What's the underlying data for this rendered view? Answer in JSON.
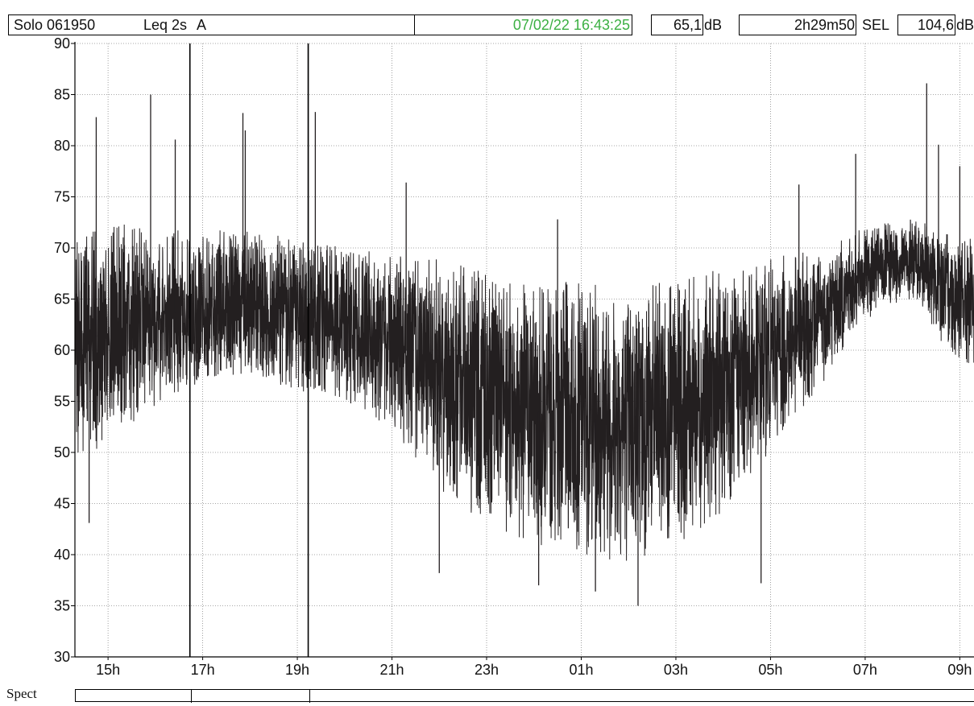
{
  "header": {
    "instrument": "Solo 061950",
    "measure": "Leq 2s",
    "weighting": "A",
    "cursor_datetime": "07/02/22 16:43:25",
    "cursor_value": "65,1",
    "cursor_unit": "dB",
    "duration": "2h29m50",
    "sel_label": "SEL",
    "sel_value": "104,6",
    "sel_unit": "dB",
    "datetime_color": "#3cb043"
  },
  "spect": {
    "label": "Spect"
  },
  "chart_data": {
    "type": "line",
    "title": "",
    "xlabel": "",
    "ylabel": "",
    "ylim": [
      30,
      90
    ],
    "y_ticks": [
      30,
      35,
      40,
      45,
      50,
      55,
      60,
      65,
      70,
      75,
      80,
      85,
      90
    ],
    "x_range_hours": [
      14.3,
      33.3
    ],
    "x_ticks": [
      {
        "hour": 15,
        "label": "15h"
      },
      {
        "hour": 17,
        "label": "17h"
      },
      {
        "hour": 19,
        "label": "19h"
      },
      {
        "hour": 21,
        "label": "21h"
      },
      {
        "hour": 23,
        "label": "23h"
      },
      {
        "hour": 25,
        "label": "01h"
      },
      {
        "hour": 27,
        "label": "03h"
      },
      {
        "hour": 29,
        "label": "05h"
      },
      {
        "hour": 31,
        "label": "07h"
      },
      {
        "hour": 33,
        "label": "09h"
      }
    ],
    "grid": true,
    "markers_hours": [
      16.73,
      19.23
    ],
    "line_color": "#231f20",
    "envelope": [
      {
        "hour": 14.3,
        "min": 49,
        "max": 71
      },
      {
        "hour": 15.0,
        "min": 51,
        "max": 73
      },
      {
        "hour": 16.0,
        "min": 54,
        "max": 72
      },
      {
        "hour": 17.0,
        "min": 57,
        "max": 72
      },
      {
        "hour": 18.0,
        "min": 57,
        "max": 72
      },
      {
        "hour": 19.0,
        "min": 56,
        "max": 71
      },
      {
        "hour": 20.0,
        "min": 55,
        "max": 71
      },
      {
        "hour": 21.0,
        "min": 52,
        "max": 70
      },
      {
        "hour": 22.0,
        "min": 46,
        "max": 69
      },
      {
        "hour": 23.0,
        "min": 43,
        "max": 68
      },
      {
        "hour": 24.0,
        "min": 41,
        "max": 67
      },
      {
        "hour": 25.0,
        "min": 40,
        "max": 67
      },
      {
        "hour": 26.0,
        "min": 39,
        "max": 67
      },
      {
        "hour": 27.0,
        "min": 41,
        "max": 67
      },
      {
        "hour": 28.0,
        "min": 44,
        "max": 68
      },
      {
        "hour": 29.0,
        "min": 50,
        "max": 69
      },
      {
        "hour": 30.0,
        "min": 56,
        "max": 70
      },
      {
        "hour": 31.0,
        "min": 63,
        "max": 72
      },
      {
        "hour": 32.0,
        "min": 65,
        "max": 73
      },
      {
        "hour": 32.7,
        "min": 60,
        "max": 72
      },
      {
        "hour": 33.3,
        "min": 57,
        "max": 71
      }
    ],
    "spikes": [
      {
        "hour": 14.75,
        "value": 82.8
      },
      {
        "hour": 15.9,
        "value": 85.0
      },
      {
        "hour": 16.42,
        "value": 80.6
      },
      {
        "hour": 16.73,
        "value": 90.0
      },
      {
        "hour": 17.85,
        "value": 83.2
      },
      {
        "hour": 17.9,
        "value": 81.5
      },
      {
        "hour": 19.23,
        "value": 90.0
      },
      {
        "hour": 19.38,
        "value": 83.3
      },
      {
        "hour": 21.3,
        "value": 76.4
      },
      {
        "hour": 24.5,
        "value": 72.8
      },
      {
        "hour": 29.6,
        "value": 76.2
      },
      {
        "hour": 30.8,
        "value": 79.2
      },
      {
        "hour": 32.3,
        "value": 86.1
      },
      {
        "hour": 32.55,
        "value": 80.1
      },
      {
        "hour": 33.0,
        "value": 78.0
      },
      {
        "hour": 14.6,
        "value": 43.1
      },
      {
        "hour": 22.0,
        "value": 38.2
      },
      {
        "hour": 24.1,
        "value": 37.0
      },
      {
        "hour": 25.3,
        "value": 36.4
      },
      {
        "hour": 26.2,
        "value": 35.0
      },
      {
        "hour": 28.8,
        "value": 37.2
      }
    ]
  }
}
